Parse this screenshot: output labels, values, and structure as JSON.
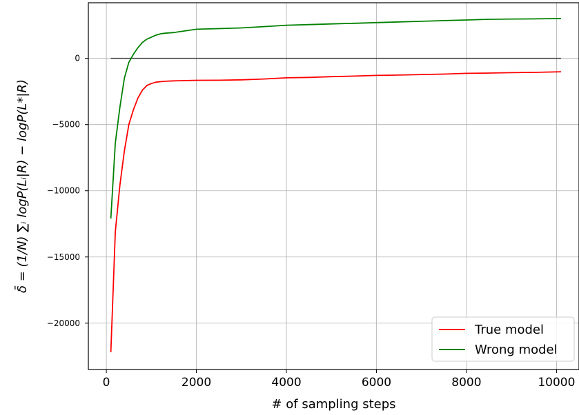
{
  "chart_data": {
    "type": "line",
    "xlabel": "# of sampling steps",
    "ylabel": "δ̄ = (1/N) ∑ᵢ logP(Lᵢ|R) − logP(L*|R)",
    "xlim": [
      -400,
      10500
    ],
    "ylim": [
      -23500,
      4200
    ],
    "xticks": [
      0,
      2000,
      4000,
      6000,
      8000,
      10000
    ],
    "yticks": [
      0,
      -5000,
      -10000,
      -15000,
      -20000
    ],
    "grid": true,
    "legend_position": "lower-right",
    "reference_line": {
      "y": 0,
      "x_from": 100,
      "x_to": 10100
    },
    "series": [
      {
        "name": "True model",
        "color": "#ff0000",
        "x": [
          100,
          200,
          300,
          400,
          500,
          600,
          700,
          800,
          900,
          1000,
          1100,
          1200,
          1300,
          1500,
          2000,
          2500,
          3000,
          3500,
          4000,
          4500,
          5000,
          5500,
          6000,
          6500,
          7000,
          7500,
          8000,
          8500,
          9000,
          9500,
          10100
        ],
        "y": [
          -22200,
          -13100,
          -9600,
          -7000,
          -5000,
          -3900,
          -3000,
          -2400,
          -2050,
          -1900,
          -1800,
          -1760,
          -1730,
          -1700,
          -1660,
          -1650,
          -1620,
          -1560,
          -1470,
          -1440,
          -1380,
          -1340,
          -1290,
          -1260,
          -1220,
          -1190,
          -1130,
          -1110,
          -1080,
          -1060,
          -1010
        ]
      },
      {
        "name": "Wrong model",
        "color": "#008000",
        "x": [
          100,
          200,
          300,
          400,
          500,
          600,
          700,
          800,
          900,
          1000,
          1100,
          1200,
          1300,
          1500,
          2000,
          2500,
          3000,
          3500,
          4000,
          4500,
          5000,
          5500,
          6000,
          6500,
          7000,
          7500,
          8000,
          8500,
          9000,
          9500,
          10100
        ],
        "y": [
          -12100,
          -6400,
          -3700,
          -1500,
          -300,
          300,
          800,
          1200,
          1450,
          1600,
          1750,
          1850,
          1900,
          1950,
          2200,
          2250,
          2300,
          2400,
          2500,
          2550,
          2600,
          2650,
          2700,
          2750,
          2800,
          2850,
          2900,
          2950,
          2970,
          2980,
          3010
        ]
      }
    ]
  }
}
